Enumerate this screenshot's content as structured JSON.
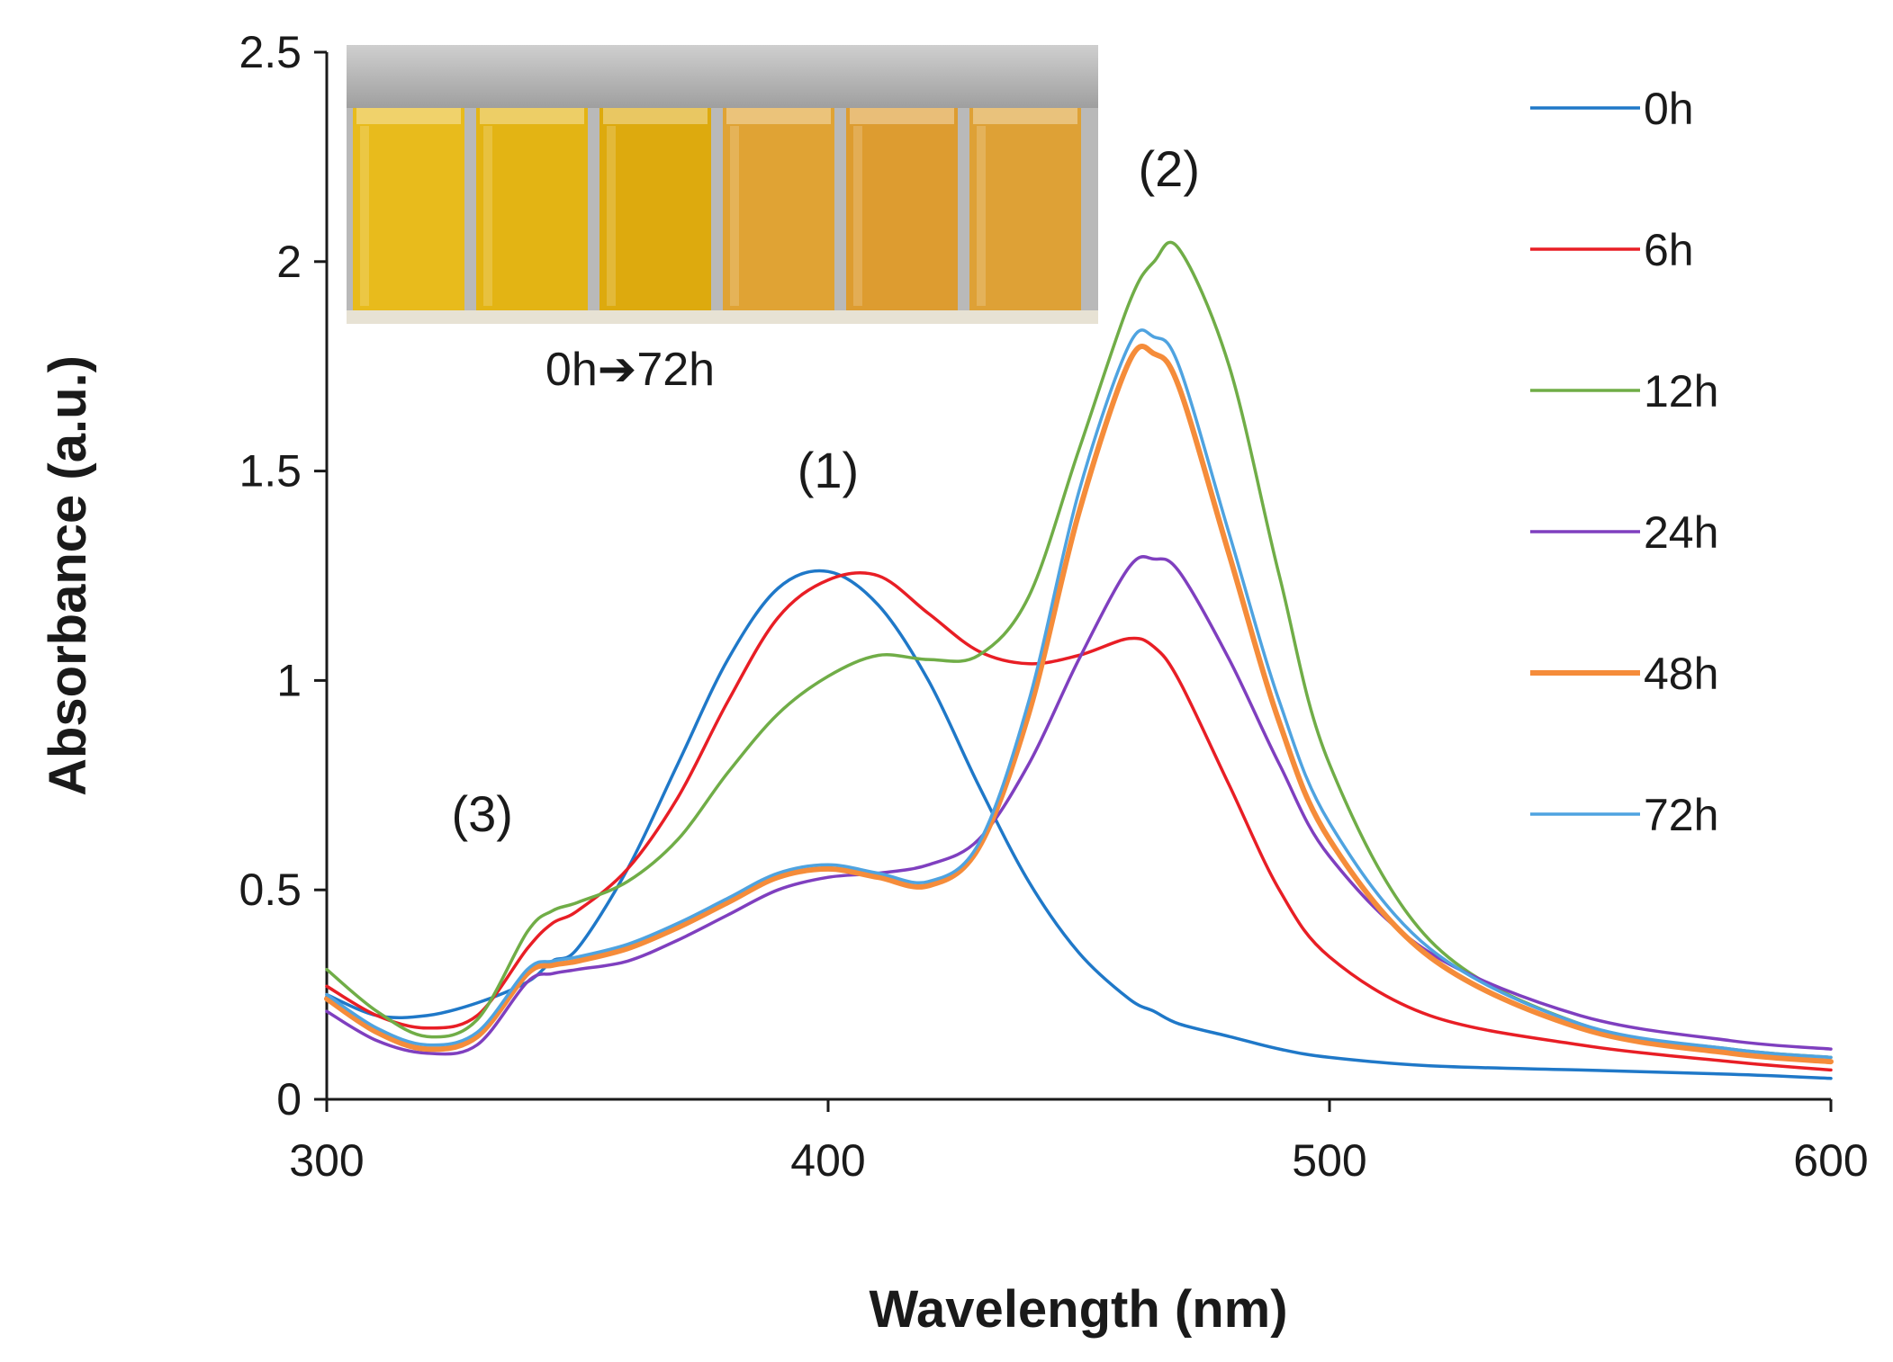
{
  "chart_data": {
    "type": "line",
    "title": "",
    "xlabel": "Wavelength (nm)",
    "ylabel": "Absorbance (a.u.)",
    "xlim": [
      300,
      600
    ],
    "ylim": [
      0,
      2.5
    ],
    "xticks": [
      "300",
      "400",
      "500",
      "600"
    ],
    "yticks": [
      "0",
      "0.5",
      "1",
      "1.5",
      "2",
      "2.5"
    ],
    "grid": false,
    "legend_position": "right",
    "x": [
      300,
      310,
      320,
      330,
      340,
      345,
      350,
      360,
      370,
      380,
      390,
      400,
      410,
      420,
      430,
      440,
      450,
      460,
      465,
      470,
      480,
      490,
      500,
      520,
      550,
      580,
      600
    ],
    "series": [
      {
        "name": "0h",
        "color": "#1f78c8",
        "values": [
          0.25,
          0.2,
          0.2,
          0.23,
          0.28,
          0.33,
          0.36,
          0.55,
          0.8,
          1.05,
          1.22,
          1.26,
          1.18,
          1.0,
          0.75,
          0.52,
          0.35,
          0.24,
          0.21,
          0.18,
          0.15,
          0.12,
          0.1,
          0.08,
          0.07,
          0.06,
          0.05
        ]
      },
      {
        "name": "6h",
        "color": "#e81e25",
        "values": [
          0.27,
          0.2,
          0.17,
          0.2,
          0.36,
          0.42,
          0.45,
          0.55,
          0.72,
          0.95,
          1.15,
          1.24,
          1.25,
          1.16,
          1.07,
          1.04,
          1.06,
          1.1,
          1.08,
          1.0,
          0.75,
          0.5,
          0.34,
          0.2,
          0.13,
          0.09,
          0.07
        ]
      },
      {
        "name": "12h",
        "color": "#70ad47",
        "values": [
          0.31,
          0.21,
          0.15,
          0.19,
          0.4,
          0.45,
          0.47,
          0.52,
          0.62,
          0.78,
          0.92,
          1.01,
          1.06,
          1.05,
          1.06,
          1.2,
          1.55,
          1.9,
          2.0,
          2.03,
          1.75,
          1.25,
          0.8,
          0.38,
          0.18,
          0.12,
          0.1
        ]
      },
      {
        "name": "24h",
        "color": "#7f3fbf",
        "values": [
          0.21,
          0.14,
          0.11,
          0.13,
          0.28,
          0.3,
          0.31,
          0.33,
          0.38,
          0.44,
          0.5,
          0.53,
          0.54,
          0.56,
          0.62,
          0.8,
          1.05,
          1.27,
          1.29,
          1.26,
          1.05,
          0.8,
          0.58,
          0.35,
          0.2,
          0.14,
          0.12
        ]
      },
      {
        "name": "48h",
        "color": "#f58c3a",
        "values": [
          0.24,
          0.16,
          0.12,
          0.15,
          0.3,
          0.32,
          0.33,
          0.36,
          0.41,
          0.47,
          0.53,
          0.55,
          0.53,
          0.51,
          0.6,
          0.92,
          1.4,
          1.76,
          1.78,
          1.7,
          1.3,
          0.9,
          0.62,
          0.34,
          0.17,
          0.11,
          0.09
        ]
      },
      {
        "name": "72h",
        "color": "#4fa3e0",
        "values": [
          0.25,
          0.17,
          0.13,
          0.16,
          0.31,
          0.33,
          0.34,
          0.37,
          0.42,
          0.48,
          0.54,
          0.56,
          0.54,
          0.52,
          0.61,
          0.95,
          1.45,
          1.8,
          1.82,
          1.75,
          1.35,
          0.95,
          0.66,
          0.36,
          0.18,
          0.12,
          0.1
        ]
      }
    ],
    "annotations": [
      {
        "text": "(1)",
        "x": 400,
        "y": 1.46
      },
      {
        "text": "(2)",
        "x": 468,
        "y": 2.18
      },
      {
        "text": "(3)",
        "x": 331,
        "y": 0.64
      }
    ],
    "inset_caption": "0h➔72h"
  }
}
